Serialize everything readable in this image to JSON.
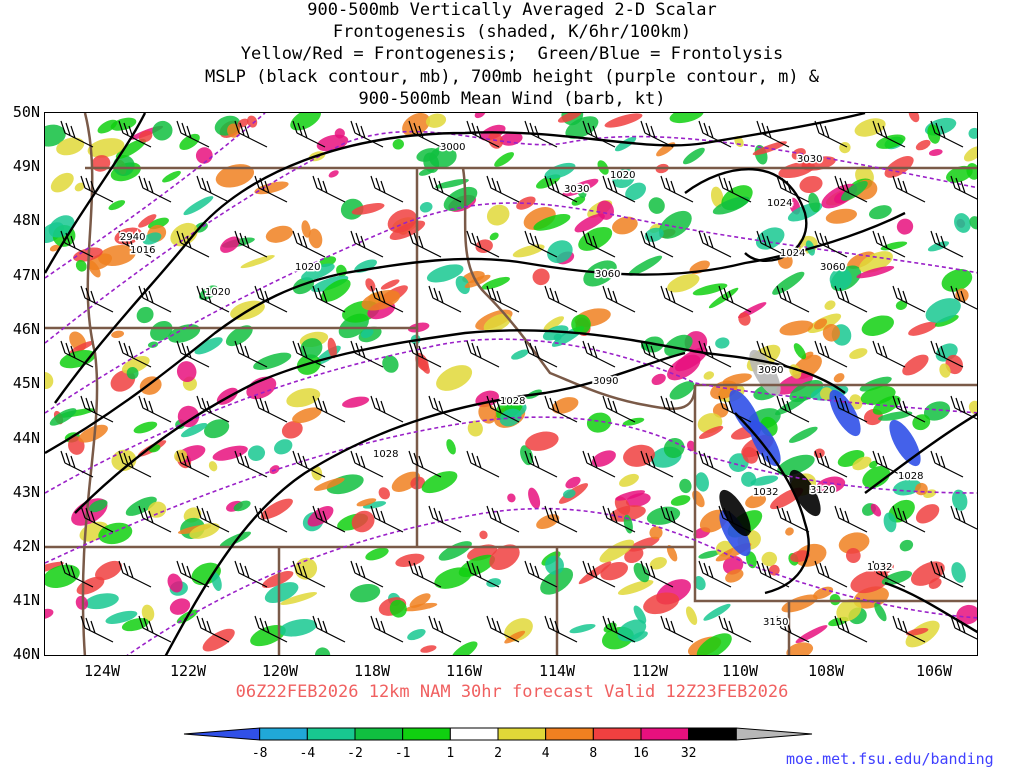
{
  "title": {
    "lines": [
      "900-500mb Vertically Averaged 2-D Scalar",
      "Frontogenesis (shaded, K/6hr/100km)",
      "Yellow/Red = Frontogenesis;  Green/Blue = Frontolysis",
      "MSLP (black contour, mb), 700mb height (purple contour, m) &",
      "900-500mb Mean Wind (barb, kt)"
    ]
  },
  "valid_line": "06Z22FEB2026 12km NAM 30hr forecast Valid 12Z23FEB2026",
  "credit": "moe.met.fsu.edu/banding",
  "axes": {
    "lat_labels": [
      "50N",
      "49N",
      "48N",
      "47N",
      "46N",
      "45N",
      "44N",
      "43N",
      "42N",
      "41N",
      "40N"
    ],
    "lon_labels": [
      "124W",
      "122W",
      "120W",
      "118W",
      "116W",
      "114W",
      "112W",
      "110W",
      "108W",
      "106W"
    ]
  },
  "contour_labels": {
    "mslp": [
      "1020",
      "1024",
      "1024",
      "1020",
      "1020",
      "1016",
      "1028",
      "1028",
      "1032",
      "1028",
      "1032"
    ],
    "height": [
      "2940",
      "3000",
      "3030",
      "3030",
      "3060",
      "3060",
      "3090",
      "3090",
      "3120",
      "3150"
    ]
  },
  "colorbar": {
    "labels": [
      "-8",
      "-4",
      "-2",
      "-1",
      "1",
      "2",
      "4",
      "8",
      "16",
      "32"
    ],
    "colors": [
      "#3050e8",
      "#20a8d8",
      "#18c890",
      "#10c040",
      "#10d010",
      "#ffffff",
      "#e0d838",
      "#f08020",
      "#f04040",
      "#e8107e",
      "#000000",
      "#b8b8b8"
    ]
  }
}
